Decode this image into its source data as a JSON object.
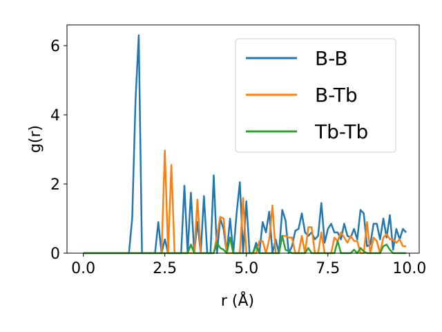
{
  "chart_data": {
    "type": "line",
    "title": "",
    "xlabel": "r (Å)",
    "ylabel": "g(r)",
    "xlim": [
      -0.5,
      10.3
    ],
    "ylim": [
      0,
      6.6
    ],
    "xticks": [
      0.0,
      2.5,
      5.0,
      7.5,
      10.0
    ],
    "xtick_labels": [
      "0.0",
      "2.5",
      "5.0",
      "7.5",
      "10.0"
    ],
    "yticks": [
      0,
      2,
      4,
      6
    ],
    "ytick_labels": [
      "0",
      "2",
      "4",
      "6"
    ],
    "grid": false,
    "legend_position": "top-right",
    "series": [
      {
        "name": "B-B",
        "color": "#1f77b4",
        "x": [
          0.0,
          1.4,
          1.5,
          1.6,
          1.7,
          1.8,
          2.0,
          2.2,
          2.3,
          2.4,
          2.5,
          2.6,
          2.7,
          2.9,
          3.0,
          3.1,
          3.2,
          3.3,
          3.4,
          3.5,
          3.6,
          3.7,
          3.8,
          3.9,
          4.0,
          4.1,
          4.2,
          4.3,
          4.4,
          4.5,
          4.6,
          4.7,
          4.8,
          4.9,
          5.0,
          5.1,
          5.2,
          5.3,
          5.4,
          5.5,
          5.6,
          5.7,
          5.8,
          5.9,
          6.0,
          6.1,
          6.2,
          6.3,
          6.4,
          6.5,
          6.6,
          6.7,
          6.8,
          6.9,
          7.0,
          7.1,
          7.2,
          7.3,
          7.4,
          7.5,
          7.6,
          7.7,
          7.8,
          7.9,
          8.0,
          8.1,
          8.2,
          8.3,
          8.4,
          8.5,
          8.6,
          8.7,
          8.8,
          8.9,
          9.0,
          9.1,
          9.2,
          9.3,
          9.4,
          9.5,
          9.6,
          9.7,
          9.8,
          9.9
        ],
        "values": [
          0,
          0,
          1.0,
          4.4,
          6.3,
          0,
          0,
          0,
          0.9,
          0,
          0.4,
          0,
          0,
          0,
          0,
          1.95,
          0,
          1.75,
          0,
          0.9,
          0,
          1.65,
          0,
          0,
          2.25,
          0,
          1.0,
          0.7,
          0,
          1.0,
          0,
          1.15,
          2.05,
          0,
          1.5,
          0,
          0,
          0.3,
          0,
          0.9,
          0.6,
          1.2,
          0,
          0.4,
          0,
          1.25,
          0.95,
          0,
          0.2,
          0.65,
          0.7,
          1.15,
          0.6,
          0.5,
          0.6,
          0.4,
          0.5,
          1.45,
          0.3,
          0.7,
          0.85,
          0.6,
          0.6,
          0.4,
          0.85,
          0.5,
          0.45,
          0.7,
          0.4,
          1.25,
          1.15,
          0.2,
          0.25,
          0.85,
          0.85,
          0.4,
          1.0,
          0.45,
          1.1,
          0.1,
          0.7,
          0.4,
          0.7,
          0.6
        ]
      },
      {
        "name": "B-Tb",
        "color": "#ff7f0e",
        "x": [
          0.0,
          2.3,
          2.4,
          2.5,
          2.6,
          2.7,
          2.8,
          3.4,
          3.5,
          3.6,
          3.8,
          3.9,
          4.0,
          4.1,
          4.2,
          4.3,
          4.4,
          4.5,
          4.7,
          4.8,
          4.9,
          5.0,
          5.1,
          5.2,
          5.3,
          5.4,
          5.5,
          5.6,
          5.7,
          5.8,
          5.9,
          6.0,
          6.1,
          6.2,
          6.3,
          6.4,
          6.5,
          6.6,
          6.7,
          6.8,
          6.9,
          7.0,
          7.1,
          7.2,
          7.3,
          7.4,
          7.5,
          7.6,
          7.7,
          7.8,
          7.9,
          8.0,
          8.1,
          8.2,
          8.3,
          8.4,
          8.5,
          8.6,
          8.7,
          8.8,
          8.9,
          9.0,
          9.1,
          9.2,
          9.3,
          9.4,
          9.5,
          9.6,
          9.7,
          9.8,
          9.9
        ],
        "values": [
          0,
          0,
          0,
          2.97,
          0,
          2.55,
          0,
          0,
          1.55,
          0,
          0,
          0,
          0,
          0.5,
          1.05,
          1.0,
          0,
          0,
          0,
          0,
          1.6,
          0,
          0,
          0,
          0,
          0.35,
          0.35,
          0,
          0.4,
          1.38,
          0,
          0,
          0.5,
          0.5,
          0.45,
          0.45,
          0,
          0,
          0.5,
          0,
          0.75,
          0.75,
          0,
          0,
          0.6,
          0,
          0,
          0,
          0.45,
          0.35,
          0.6,
          0.45,
          0.3,
          0.5,
          0.35,
          0.35,
          0,
          0,
          0.9,
          0,
          0.45,
          0.35,
          0,
          0.45,
          0.55,
          0.4,
          0.4,
          0.3,
          0.4,
          0.2,
          0.2
        ]
      },
      {
        "name": "Tb-Tb",
        "color": "#2ca02c",
        "x": [
          0.0,
          3.2,
          3.3,
          3.4,
          3.9,
          4.0,
          4.1,
          4.2,
          4.3,
          4.4,
          4.5,
          4.6,
          4.7,
          5.2,
          5.3,
          5.4,
          5.9,
          6.0,
          6.1,
          6.2,
          6.3,
          6.4,
          6.5,
          6.6,
          6.7,
          6.8,
          6.9,
          7.0,
          7.1,
          7.2,
          7.7,
          7.8,
          7.9,
          8.0,
          8.1,
          8.2,
          8.3,
          8.4,
          8.5,
          8.6,
          8.7,
          8.8,
          8.9,
          9.0,
          9.1,
          9.2,
          9.3,
          9.4,
          9.5,
          9.6,
          9.7,
          9.8,
          9.9
        ],
        "values": [
          0,
          0,
          0.25,
          0,
          0,
          0,
          0.3,
          0.15,
          0.1,
          0,
          0.45,
          0,
          0,
          0,
          0.2,
          0,
          0,
          0,
          0.5,
          0.1,
          0.05,
          0,
          0,
          0,
          0,
          0,
          0.15,
          0,
          0,
          0,
          0,
          0.35,
          0,
          0,
          0,
          0,
          0.1,
          0,
          0.15,
          0.05,
          0,
          0,
          0,
          0,
          0,
          0.2,
          0.25,
          0.1,
          0,
          0,
          0,
          0,
          0
        ]
      }
    ]
  }
}
